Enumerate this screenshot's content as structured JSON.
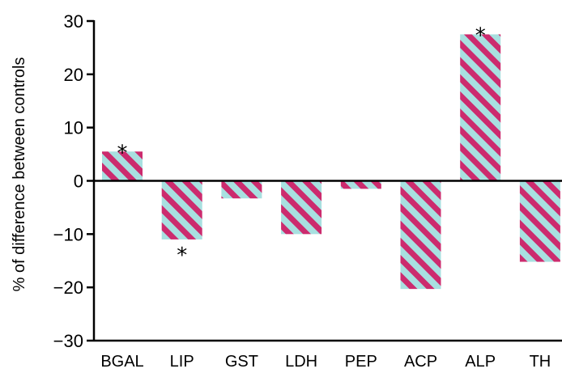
{
  "chart_data": {
    "type": "bar",
    "ylabel": "% of difference between controls",
    "categories": [
      "BGAL",
      "LIP",
      "GST",
      "LDH",
      "PEP",
      "ACP",
      "ALP",
      "TH"
    ],
    "values": [
      5.5,
      -11,
      -3.3,
      -10,
      -1.5,
      -20.3,
      27.5,
      -15.2
    ],
    "significant": [
      "*",
      "*",
      "",
      "",
      "",
      "",
      "*",
      ""
    ],
    "ylim": [
      -30,
      30
    ],
    "yticks": [
      "−30",
      "−20",
      "−10",
      "0",
      "10",
      "20",
      "30"
    ],
    "ytick_values": [
      -30,
      -20,
      -10,
      0,
      10,
      20,
      30
    ],
    "colors": {
      "stripe_light": "#a8e0e0",
      "stripe_dark": "#cc2b6e",
      "axis": "#000000"
    },
    "grid": false,
    "legend": "none"
  }
}
